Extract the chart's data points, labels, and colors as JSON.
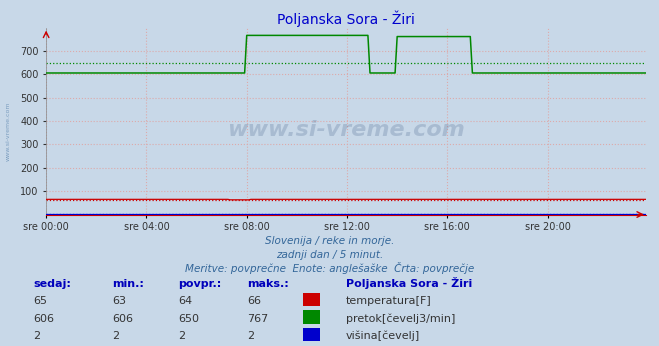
{
  "title": "Poljanska Sora - Žiri",
  "title_color": "#0000cc",
  "bg_color": "#c8d8e8",
  "plot_bg_color": "#c8d8e8",
  "xlabel_ticks": [
    "sre 00:00",
    "sre 04:00",
    "sre 08:00",
    "sre 12:00",
    "sre 16:00",
    "sre 20:00"
  ],
  "xlabel_tick_positions": [
    0,
    48,
    96,
    144,
    192,
    240
  ],
  "ylim": [
    0,
    800
  ],
  "yticks": [
    100,
    200,
    300,
    400,
    500,
    600,
    700
  ],
  "n_points": 288,
  "temp_value": 65,
  "temp_avg": 64,
  "flow_base": 606,
  "flow_avg": 650,
  "flow_spike1_start": 96,
  "flow_spike1_end": 155,
  "flow_spike1_val": 767,
  "flow_dip_start": 155,
  "flow_dip_end": 168,
  "flow_dip_val": 606,
  "flow_spike2_start": 168,
  "flow_spike2_end": 204,
  "flow_spike2_val": 762,
  "height_value": 2,
  "red_color": "#cc0000",
  "green_color": "#008800",
  "blue_color": "#0000cc",
  "grid_color": "#ddaaaa",
  "watermark": "www.si-vreme.com",
  "watermark_color": "#1a3a6a",
  "watermark_alpha": 0.18,
  "side_watermark_color": "#336699",
  "side_watermark_alpha": 0.5,
  "subtitle1": "Slovenija / reke in morje.",
  "subtitle2": "zadnji dan / 5 minut.",
  "subtitle3": "Meritve: povprečne  Enote: anglešaške  Črta: povprečje",
  "legend_title": "Poljanska Sora - Žiri",
  "legend_items": [
    {
      "label": "temperatura[F]",
      "color": "#cc0000"
    },
    {
      "label": "pretok[čevelj3/min]",
      "color": "#008800"
    },
    {
      "label": "višina[čevelj]",
      "color": "#0000cc"
    }
  ],
  "table_headers": [
    "sedaj:",
    "min.:",
    "povpr.:",
    "maks.:"
  ],
  "table_rows": [
    [
      65,
      63,
      64,
      66
    ],
    [
      606,
      606,
      650,
      767
    ],
    [
      2,
      2,
      2,
      2
    ]
  ]
}
